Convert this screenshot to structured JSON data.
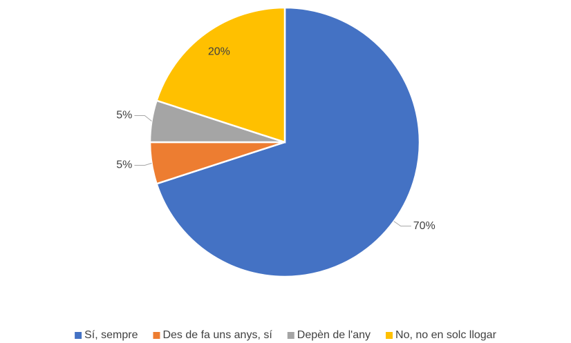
{
  "chart_data": {
    "type": "pie",
    "categories": [
      "Sí, sempre",
      "Des de fa uns anys, sí",
      "Depèn de l'any",
      "No, no en solc llogar"
    ],
    "values": [
      70,
      5,
      5,
      20
    ],
    "value_labels": [
      "70%",
      "5%",
      "5%",
      "20%"
    ],
    "colors": [
      "#4472c4",
      "#ed7d31",
      "#a5a5a5",
      "#ffc000"
    ],
    "legend": "bottom"
  }
}
